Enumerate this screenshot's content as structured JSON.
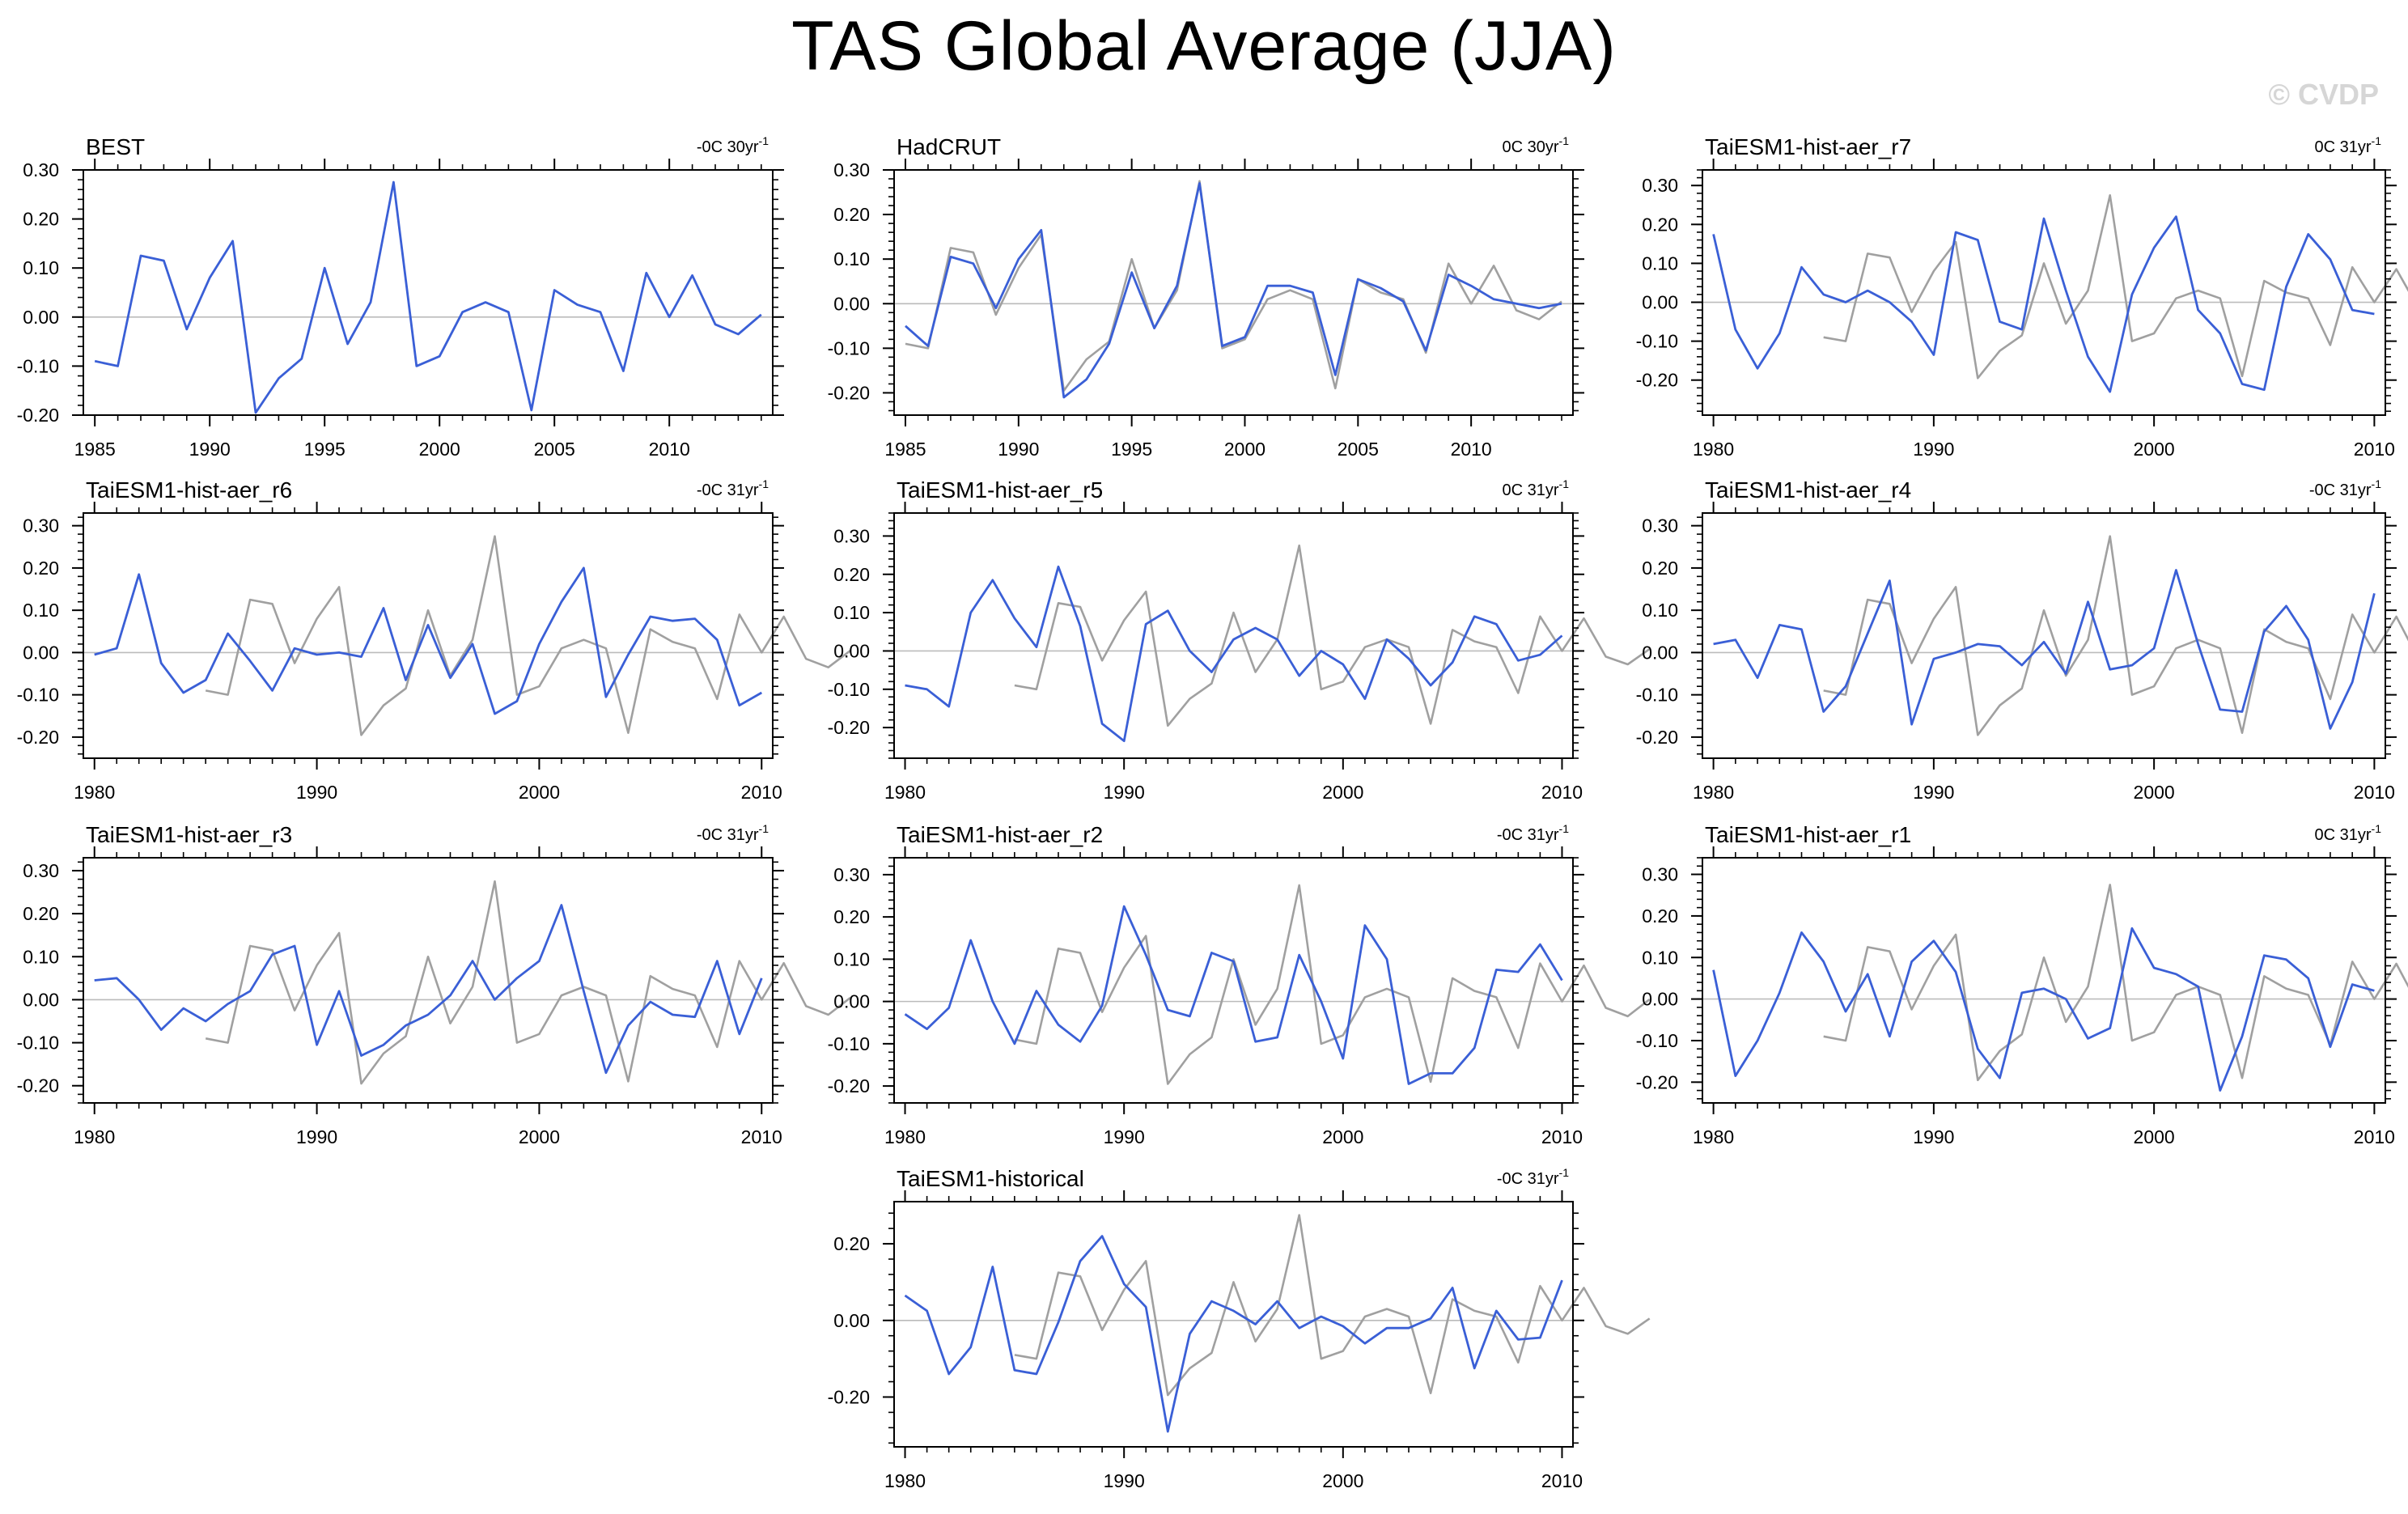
{
  "title": "TAS Global Average (JJA)",
  "watermark": "© CVDP",
  "colors": {
    "model": "#3a5fd6",
    "obs": "#a0a0a0",
    "zero": "#bbbbbb",
    "axis": "#000000"
  },
  "obs_reference": {
    "years": [
      1985,
      1986,
      1987,
      1988,
      1989,
      1990,
      1991,
      1992,
      1993,
      1994,
      1995,
      1996,
      1997,
      1998,
      1999,
      2000,
      2001,
      2002,
      2003,
      2004,
      2005,
      2006,
      2007,
      2008,
      2009,
      2010,
      2011,
      2012,
      2013,
      2014
    ],
    "values": [
      -0.09,
      -0.1,
      0.125,
      0.115,
      -0.025,
      0.08,
      0.155,
      -0.195,
      -0.125,
      -0.085,
      0.1,
      -0.055,
      0.03,
      0.275,
      -0.1,
      -0.08,
      0.01,
      0.03,
      0.01,
      -0.19,
      0.055,
      0.025,
      0.01,
      -0.11,
      0.09,
      0.0,
      0.085,
      -0.015,
      -0.035,
      0.005
    ]
  },
  "chart_data": [
    {
      "type": "line",
      "title": "BEST",
      "trend_value": "-0C 30yr",
      "trend_exp": "-1",
      "ylim": [
        -0.2,
        0.3
      ],
      "yticks": [
        -0.2,
        -0.1,
        0.0,
        0.1,
        0.2,
        0.3
      ],
      "yticklabels": [
        "-0.20",
        "-0.10",
        "0.00",
        "0.10",
        "0.20",
        "0.30"
      ],
      "xlim": [
        1984.5,
        2014.5
      ],
      "xticks": [
        1985,
        1990,
        1995,
        2000,
        2005,
        2010
      ],
      "show_obs": false,
      "series": [
        {
          "name": "BEST",
          "start": 1985,
          "values": [
            -0.09,
            -0.1,
            0.125,
            0.115,
            -0.025,
            0.08,
            0.155,
            -0.195,
            -0.125,
            -0.085,
            0.1,
            -0.055,
            0.03,
            0.275,
            -0.1,
            -0.08,
            0.01,
            0.03,
            0.01,
            -0.19,
            0.055,
            0.025,
            0.01,
            -0.11,
            0.09,
            0.0,
            0.085,
            -0.015,
            -0.035,
            0.005
          ]
        }
      ]
    },
    {
      "type": "line",
      "title": "HadCRUT",
      "trend_value": "0C 30yr",
      "trend_exp": "-1",
      "ylim": [
        -0.25,
        0.3
      ],
      "yticks": [
        -0.2,
        -0.1,
        0.0,
        0.1,
        0.2,
        0.3
      ],
      "yticklabels": [
        "-0.20",
        "-0.10",
        "0.00",
        "0.10",
        "0.20",
        "0.30"
      ],
      "xlim": [
        1984.5,
        2014.5
      ],
      "xticks": [
        1985,
        1990,
        1995,
        2000,
        2005,
        2010
      ],
      "show_obs": true,
      "series": [
        {
          "name": "HadCRUT",
          "start": 1985,
          "values": [
            -0.05,
            -0.095,
            0.105,
            0.09,
            -0.01,
            0.1,
            0.165,
            -0.21,
            -0.17,
            -0.09,
            0.07,
            -0.055,
            0.04,
            0.27,
            -0.095,
            -0.075,
            0.04,
            0.04,
            0.025,
            -0.16,
            0.055,
            0.035,
            0.005,
            -0.105,
            0.065,
            0.04,
            0.01,
            0.0,
            -0.01,
            0.0
          ]
        }
      ]
    },
    {
      "type": "line",
      "title": "TaiESM1-hist-aer_r7",
      "trend_value": "0C 31yr",
      "trend_exp": "-1",
      "ylim": [
        -0.29,
        0.34
      ],
      "yticks": [
        -0.2,
        -0.1,
        0.0,
        0.1,
        0.2,
        0.3
      ],
      "yticklabels": [
        "-0.20",
        "-0.10",
        "0.00",
        "0.10",
        "0.20",
        "0.30"
      ],
      "xlim": [
        1979.5,
        2010.5
      ],
      "xticks": [
        1980,
        1990,
        2000,
        2010
      ],
      "show_obs": true,
      "series": [
        {
          "name": "TaiESM1-hist-aer_r7",
          "start": 1980,
          "values": [
            0.175,
            -0.07,
            -0.17,
            -0.08,
            0.09,
            0.02,
            0.0,
            0.03,
            0.0,
            -0.05,
            -0.135,
            0.18,
            0.16,
            -0.05,
            -0.07,
            0.215,
            0.03,
            -0.14,
            -0.23,
            0.02,
            0.14,
            0.22,
            -0.02,
            -0.08,
            -0.21,
            -0.225,
            0.04,
            0.175,
            0.11,
            -0.02,
            -0.03
          ]
        }
      ]
    },
    {
      "type": "line",
      "title": "TaiESM1-hist-aer_r6",
      "trend_value": "-0C 31yr",
      "trend_exp": "-1",
      "ylim": [
        -0.25,
        0.33
      ],
      "yticks": [
        -0.2,
        -0.1,
        0.0,
        0.1,
        0.2,
        0.3
      ],
      "yticklabels": [
        "-0.20",
        "-0.10",
        "0.00",
        "0.10",
        "0.20",
        "0.30"
      ],
      "xlim": [
        1979.5,
        2010.5
      ],
      "xticks": [
        1980,
        1990,
        2000,
        2010
      ],
      "show_obs": true,
      "series": [
        {
          "name": "TaiESM1-hist-aer_r6",
          "start": 1980,
          "values": [
            -0.005,
            0.01,
            0.185,
            -0.025,
            -0.095,
            -0.065,
            0.045,
            -0.02,
            -0.09,
            0.01,
            -0.005,
            0.0,
            -0.01,
            0.105,
            -0.065,
            0.065,
            -0.06,
            0.02,
            -0.145,
            -0.115,
            0.02,
            0.12,
            0.2,
            -0.105,
            -0.005,
            0.085,
            0.075,
            0.08,
            0.03,
            -0.125,
            -0.095
          ]
        }
      ]
    },
    {
      "type": "line",
      "title": "TaiESM1-hist-aer_r5",
      "trend_value": "0C 31yr",
      "trend_exp": "-1",
      "ylim": [
        -0.28,
        0.36
      ],
      "yticks": [
        -0.2,
        -0.1,
        0.0,
        0.1,
        0.2,
        0.3
      ],
      "yticklabels": [
        "-0.20",
        "-0.10",
        "0.00",
        "0.10",
        "0.20",
        "0.30"
      ],
      "xlim": [
        1979.5,
        2010.5
      ],
      "xticks": [
        1980,
        1990,
        2000,
        2010
      ],
      "show_obs": true,
      "series": [
        {
          "name": "TaiESM1-hist-aer_r5",
          "start": 1980,
          "values": [
            -0.09,
            -0.1,
            -0.145,
            0.1,
            0.185,
            0.085,
            0.01,
            0.22,
            0.065,
            -0.19,
            -0.235,
            0.07,
            0.105,
            0.0,
            -0.055,
            0.03,
            0.06,
            0.03,
            -0.065,
            0.0,
            -0.035,
            -0.125,
            0.03,
            -0.02,
            -0.09,
            -0.03,
            0.09,
            0.07,
            -0.025,
            -0.01,
            0.04
          ]
        }
      ]
    },
    {
      "type": "line",
      "title": "TaiESM1-hist-aer_r4",
      "trend_value": "-0C 31yr",
      "trend_exp": "-1",
      "ylim": [
        -0.25,
        0.33
      ],
      "yticks": [
        -0.2,
        -0.1,
        0.0,
        0.1,
        0.2,
        0.3
      ],
      "yticklabels": [
        "-0.20",
        "-0.10",
        "0.00",
        "0.10",
        "0.20",
        "0.30"
      ],
      "xlim": [
        1979.5,
        2010.5
      ],
      "xticks": [
        1980,
        1990,
        2000,
        2010
      ],
      "show_obs": true,
      "series": [
        {
          "name": "TaiESM1-hist-aer_r4",
          "start": 1980,
          "values": [
            0.02,
            0.03,
            -0.06,
            0.065,
            0.055,
            -0.14,
            -0.08,
            0.045,
            0.17,
            -0.17,
            -0.015,
            0.0,
            0.02,
            0.015,
            -0.03,
            0.025,
            -0.05,
            0.12,
            -0.04,
            -0.03,
            0.01,
            0.195,
            0.02,
            -0.135,
            -0.14,
            0.05,
            0.11,
            0.03,
            -0.18,
            -0.07,
            0.14
          ]
        }
      ]
    },
    {
      "type": "line",
      "title": "TaiESM1-hist-aer_r3",
      "trend_value": "-0C 31yr",
      "trend_exp": "-1",
      "ylim": [
        -0.24,
        0.33
      ],
      "yticks": [
        -0.2,
        -0.1,
        0.0,
        0.1,
        0.2,
        0.3
      ],
      "yticklabels": [
        "-0.20",
        "-0.10",
        "0.00",
        "0.10",
        "0.20",
        "0.30"
      ],
      "xlim": [
        1979.5,
        2010.5
      ],
      "xticks": [
        1980,
        1990,
        2000,
        2010
      ],
      "show_obs": true,
      "series": [
        {
          "name": "TaiESM1-hist-aer_r3",
          "start": 1980,
          "values": [
            0.045,
            0.05,
            0.0,
            -0.07,
            -0.02,
            -0.05,
            -0.01,
            0.02,
            0.105,
            0.125,
            -0.105,
            0.02,
            -0.13,
            -0.105,
            -0.06,
            -0.035,
            0.01,
            0.09,
            0.0,
            0.05,
            0.09,
            0.22,
            0.02,
            -0.17,
            -0.06,
            -0.005,
            -0.035,
            -0.04,
            0.09,
            -0.08,
            0.05
          ]
        }
      ]
    },
    {
      "type": "line",
      "title": "TaiESM1-hist-aer_r2",
      "trend_value": "-0C 31yr",
      "trend_exp": "-1",
      "ylim": [
        -0.24,
        0.34
      ],
      "yticks": [
        -0.2,
        -0.1,
        0.0,
        0.1,
        0.2,
        0.3
      ],
      "yticklabels": [
        "-0.20",
        "-0.10",
        "0.00",
        "0.10",
        "0.20",
        "0.30"
      ],
      "xlim": [
        1979.5,
        2010.5
      ],
      "xticks": [
        1980,
        1990,
        2000,
        2010
      ],
      "show_obs": true,
      "series": [
        {
          "name": "TaiESM1-hist-aer_r2",
          "start": 1980,
          "values": [
            -0.03,
            -0.065,
            -0.015,
            0.145,
            0.0,
            -0.1,
            0.025,
            -0.055,
            -0.095,
            -0.01,
            0.225,
            0.11,
            -0.02,
            -0.035,
            0.115,
            0.095,
            -0.095,
            -0.085,
            0.11,
            0.0,
            -0.135,
            0.18,
            0.1,
            -0.195,
            -0.17,
            -0.17,
            -0.11,
            0.075,
            0.07,
            0.135,
            0.05
          ]
        }
      ]
    },
    {
      "type": "line",
      "title": "TaiESM1-hist-aer_r1",
      "trend_value": "0C 31yr",
      "trend_exp": "-1",
      "ylim": [
        -0.25,
        0.34
      ],
      "yticks": [
        -0.2,
        -0.1,
        0.0,
        0.1,
        0.2,
        0.3
      ],
      "yticklabels": [
        "-0.20",
        "-0.10",
        "0.00",
        "0.10",
        "0.20",
        "0.30"
      ],
      "xlim": [
        1979.5,
        2010.5
      ],
      "xticks": [
        1980,
        1990,
        2000,
        2010
      ],
      "show_obs": true,
      "series": [
        {
          "name": "TaiESM1-hist-aer_r1",
          "start": 1980,
          "values": [
            0.07,
            -0.185,
            -0.1,
            0.015,
            0.16,
            0.09,
            -0.03,
            0.06,
            -0.09,
            0.09,
            0.14,
            0.065,
            -0.12,
            -0.19,
            0.015,
            0.025,
            0.0,
            -0.095,
            -0.07,
            0.17,
            0.075,
            0.06,
            0.03,
            -0.22,
            -0.09,
            0.105,
            0.095,
            0.05,
            -0.115,
            0.035,
            0.02
          ]
        }
      ]
    },
    {
      "type": "line",
      "title": "TaiESM1-historical",
      "trend_value": "-0C 31yr",
      "trend_exp": "-1",
      "ylim": [
        -0.33,
        0.31
      ],
      "yticks": [
        -0.2,
        0.0,
        0.2
      ],
      "yticklabels": [
        "-0.20",
        "0.00",
        "0.20"
      ],
      "xlim": [
        1979.5,
        2010.5
      ],
      "xticks": [
        1980,
        1990,
        2000,
        2010
      ],
      "show_obs": true,
      "series": [
        {
          "name": "TaiESM1-historical",
          "start": 1980,
          "values": [
            0.065,
            0.025,
            -0.14,
            -0.07,
            0.14,
            -0.13,
            -0.14,
            -0.005,
            0.155,
            0.22,
            0.095,
            0.035,
            -0.29,
            -0.035,
            0.05,
            0.025,
            -0.01,
            0.05,
            -0.02,
            0.01,
            -0.015,
            -0.06,
            -0.02,
            -0.02,
            0.005,
            0.085,
            -0.125,
            0.025,
            -0.05,
            -0.045,
            0.105
          ]
        }
      ]
    }
  ]
}
